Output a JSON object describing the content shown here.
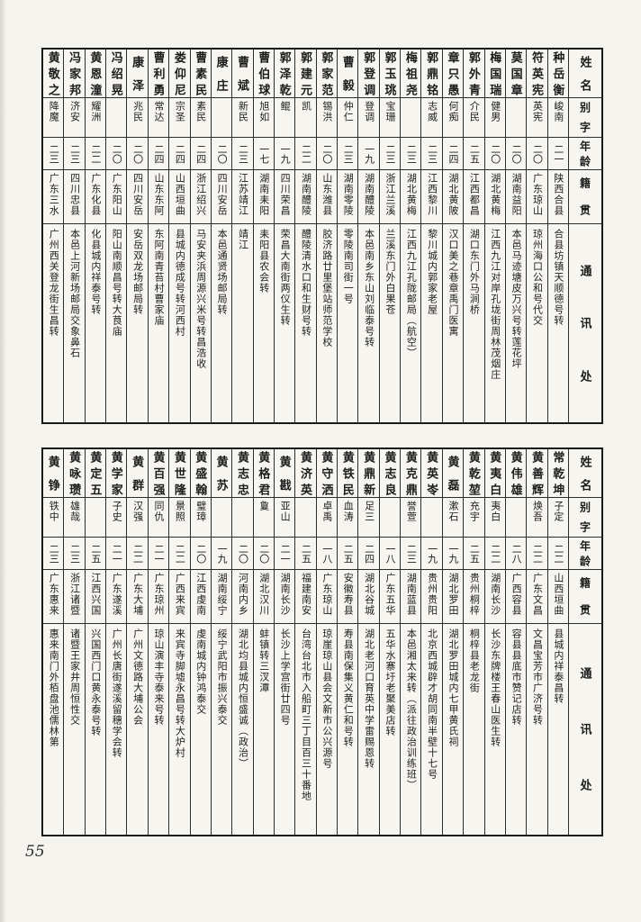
{
  "page": {
    "number": "55"
  },
  "headers": {
    "name": "姓名",
    "alias": "别字",
    "age": "年龄",
    "native": "籍贯",
    "contact": "通讯处"
  },
  "tables": [
    {
      "people": [
        {
          "name": "种岳衡",
          "alias": "峻南",
          "age": "二一",
          "native": "陕西合县",
          "contact": "合县坊镇天顺德号转"
        },
        {
          "name": "符英宪",
          "alias": "英宪",
          "age": "二〇",
          "native": "广东琼山",
          "contact": "琼州海口公和号代交"
        },
        {
          "name": "莫国章",
          "alias": "",
          "age": "二〇",
          "native": "湖南益阳",
          "contact": "本邑马迹塘皮万兴号转莲花坪"
        },
        {
          "name": "梅国瑞",
          "alias": "健男",
          "age": "二〇",
          "native": "湖北黄梅",
          "contact": "江西九江对岸孔垅街周林茂烟庄"
        },
        {
          "name": "郭外青",
          "alias": "介民",
          "age": "二五",
          "native": "江西都昌",
          "contact": "湖口东门外马涧桥"
        },
        {
          "name": "章只愚",
          "alias": "何痴",
          "age": "二四",
          "native": "湖北黄陂",
          "contact": "汉口美之巷章禹门医寓"
        },
        {
          "name": "郭鼎铭",
          "alias": "志威",
          "age": "二三",
          "native": "江西黎川",
          "contact": "黎川城内郭家老屋"
        },
        {
          "name": "梅祖尧",
          "alias": "",
          "age": "二三",
          "native": "湖北黄梅",
          "contact": "江西九江孔陇邮局（航空）"
        },
        {
          "name": "郭玉珧",
          "alias": "宝珊",
          "age": "二三",
          "native": "浙江兰溪",
          "contact": "兰溪东门外白果苍"
        },
        {
          "name": "郭登调",
          "alias": "登调",
          "age": "一九",
          "native": "湖南醴陵",
          "contact": "本邑南乡东山刘临泰号转"
        },
        {
          "name": "曹毅",
          "alias": "仲仁",
          "age": "二三",
          "native": "湖南零陵",
          "contact": "零陵南司街一号"
        },
        {
          "name": "郭家范",
          "alias": "锡洪",
          "age": "二〇",
          "native": "山东潍县",
          "contact": "胶济路廿里堡站师范学校"
        },
        {
          "name": "郭建元",
          "alias": "凯",
          "age": "二二",
          "native": "湖南醴陵",
          "contact": "醴陵清水口和生财号转"
        },
        {
          "name": "郭泽乾",
          "alias": "鲲",
          "age": "一九",
          "native": "四川荣昌",
          "contact": "荣昌大南街两仪生转"
        },
        {
          "name": "曹伯球",
          "alias": "旭如",
          "age": "一七",
          "native": "湖南耒阳",
          "contact": "耒阳县农会转"
        },
        {
          "name": "曹斌",
          "alias": "新民",
          "age": "二三",
          "native": "江苏靖江",
          "contact": "靖江"
        },
        {
          "name": "康庄",
          "alias": "",
          "age": "二〇",
          "native": "四川安岳",
          "contact": "本邑通贤场邮局转"
        },
        {
          "name": "曹素民",
          "alias": "素民",
          "age": "二四",
          "native": "浙江绍兴",
          "contact": "马安夹浜周源兴米号转昌浩收"
        },
        {
          "name": "娄仰尼",
          "alias": "宗圣",
          "age": "二四",
          "native": "山西垣曲",
          "contact": "县城内德成号转河西村"
        },
        {
          "name": "曹利勇",
          "alias": "常达",
          "age": "二四",
          "native": "山东东阿",
          "contact": "东阿南青苔村曹家庙"
        },
        {
          "name": "康泽",
          "alias": "兆民",
          "age": "二〇",
          "native": "四川安岳",
          "contact": "安岳双龙场邮局转"
        },
        {
          "name": "冯绍晃",
          "alias": "",
          "age": "二〇",
          "native": "广东阳山",
          "contact": "阳山南顺昌号转大茛庙"
        },
        {
          "name": "黄恩潼",
          "alias": "耀洲",
          "age": "二二",
          "native": "广东化县",
          "contact": "化县城内祥泰号转"
        },
        {
          "name": "冯家邦",
          "alias": "济安",
          "age": "二三",
          "native": "四川忠县",
          "contact": "本邑上河新场邮局交象鼻石"
        },
        {
          "name": "黄敬之",
          "alias": "降魔",
          "age": "二三",
          "native": "广东三水",
          "contact": "广州西关登龙街生昌转"
        }
      ]
    },
    {
      "people": [
        {
          "name": "常乾坤",
          "alias": "子定",
          "age": "二二",
          "native": "山西垣曲",
          "contact": "县城内祥泰昌转"
        },
        {
          "name": "黄善辉",
          "alias": "焕吾",
          "age": "二二",
          "native": "广东文昌",
          "contact": "文昌宝芳市广济号转"
        },
        {
          "name": "黄伟雄",
          "alias": "",
          "age": "二八",
          "native": "广西容县",
          "contact": "容县县底市赞记店转"
        },
        {
          "name": "黄夷白",
          "alias": "夷白",
          "age": "二二",
          "native": "湖南长沙",
          "contact": "长沙东牌楼王春山医生转"
        },
        {
          "name": "黄乾堃",
          "alias": "充宇",
          "age": "二五",
          "native": "贵州桐梓",
          "contact": "桐梓县老龙街"
        },
        {
          "name": "黄磊",
          "alias": "漱石",
          "age": "一九",
          "native": "湖北罗田",
          "contact": "湖北罗田城内七甲黄氏祠"
        },
        {
          "name": "黄英岺",
          "alias": "",
          "age": "一九",
          "native": "贵州贵阳",
          "contact": "北京西城辟才胡同南半壁十七号"
        },
        {
          "name": "黄克鼎",
          "alias": "誉萱",
          "age": "二三",
          "native": "湖南蓝县",
          "contact": "本邑湘太来转（派往政治训练班）"
        },
        {
          "name": "黄志良",
          "alias": "",
          "age": "一八",
          "native": "广东五华",
          "contact": "五华水寨圩老聚美店转"
        },
        {
          "name": "黄鼎新",
          "alias": "足三",
          "age": "二四",
          "native": "湖北谷城",
          "contact": "湖北老河口育英中学雷赐恩转"
        },
        {
          "name": "黄铁民",
          "alias": "血涛",
          "age": "二五",
          "native": "安徽寿县",
          "contact": "寿县南保集义黄仁和号转"
        },
        {
          "name": "黄守洒",
          "alias": "卓禹",
          "age": "一八",
          "native": "广东琼山",
          "contact": "琼崖琼山县会文新市公兴源号"
        },
        {
          "name": "黄济英",
          "alias": "",
          "age": "二五",
          "native": "福建南安",
          "contact": "台湾台北市入船町三丁目百三十番地"
        },
        {
          "name": "黄戡",
          "alias": "亚山",
          "age": "二一",
          "native": "湖南长沙",
          "contact": "长沙上学宫街廿四号"
        },
        {
          "name": "黄格君",
          "alias": "敻",
          "age": "二〇",
          "native": "湖北汉川",
          "contact": "蚌镇转三汊潭"
        },
        {
          "name": "黄志忠",
          "alias": "",
          "age": "二〇",
          "native": "河南内乡",
          "contact": "湖北均县城内恒盛诚（政治）"
        },
        {
          "name": "黄苏",
          "alias": "",
          "age": "一九",
          "native": "湖南绥宁",
          "contact": "绥宁武阳市振兴泰交"
        },
        {
          "name": "黄盛翰",
          "alias": "璧璋",
          "age": "二〇",
          "native": "江西虔南",
          "contact": "虔南城内钟鸿泰交"
        },
        {
          "name": "黄世隆",
          "alias": "景照",
          "age": "二二",
          "native": "广西来宾",
          "contact": "来宾寺脚墟永昌号转大炉村"
        },
        {
          "name": "黄百强",
          "alias": "同仇",
          "age": "二一",
          "native": "广东琼州",
          "contact": "琼山演丰寺泰来号转"
        },
        {
          "name": "黄群",
          "alias": "汉强",
          "age": "二二",
          "native": "广东大埔",
          "contact": "广州文德路大埔公会"
        },
        {
          "name": "黄学家",
          "alias": "子史",
          "age": "二一",
          "native": "广东遂溪",
          "contact": "广州长唐街遂溪留穗学会转"
        },
        {
          "name": "黄定五",
          "alias": "",
          "age": "二五",
          "native": "江西兴国",
          "contact": "兴国西门口黄永泰号转"
        },
        {
          "name": "黄咏瓒",
          "alias": "雄哉",
          "age": "二三",
          "native": "浙江诸暨",
          "contact": "诸暨王家井周恒性交"
        },
        {
          "name": "黄铮",
          "alias": "铁中",
          "age": "二三",
          "native": "广东惠来",
          "contact": "惠来南门外栢盘池儒林第"
        }
      ]
    }
  ]
}
